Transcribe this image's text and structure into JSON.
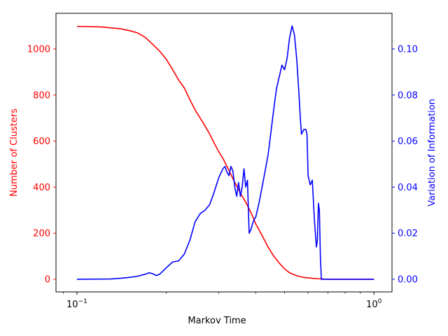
{
  "chart_data": {
    "type": "line",
    "xlabel": "Markov Time",
    "x_scale": "log",
    "xlim": [
      0.085,
      1.15
    ],
    "x_ticks": [
      {
        "value": 0.1,
        "base": "10",
        "exp": "−1"
      },
      {
        "value": 1.0,
        "base": "10",
        "exp": "0"
      }
    ],
    "y_left": {
      "label": "Number of Clusters",
      "color": "#ff0000",
      "lim": [
        -55,
        1155
      ],
      "ticks": [
        0,
        200,
        400,
        600,
        800,
        1000
      ],
      "tick_labels": [
        "0",
        "200",
        "400",
        "600",
        "800",
        "1000"
      ]
    },
    "y_right": {
      "label": "Variation of Information",
      "color": "#0000ff",
      "lim": [
        -0.0055,
        0.1155
      ],
      "ticks": [
        0.0,
        0.02,
        0.04,
        0.06,
        0.08,
        0.1
      ],
      "tick_labels": [
        "0.00",
        "0.02",
        "0.04",
        "0.06",
        "0.08",
        "0.10"
      ]
    },
    "series": [
      {
        "axis": "left",
        "color": "#ff0000",
        "x": [
          0.1,
          0.12,
          0.14,
          0.15,
          0.16,
          0.17,
          0.18,
          0.19,
          0.2,
          0.21,
          0.22,
          0.23,
          0.24,
          0.25,
          0.26,
          0.27,
          0.28,
          0.29,
          0.3,
          0.31,
          0.32,
          0.33,
          0.34,
          0.35,
          0.36,
          0.37,
          0.38,
          0.39,
          0.4,
          0.42,
          0.44,
          0.46,
          0.48,
          0.5,
          0.52,
          0.55,
          0.58,
          0.62,
          0.65,
          0.7,
          0.8,
          1.0
        ],
        "values": [
          1098,
          1096,
          1088,
          1080,
          1070,
          1050,
          1020,
          990,
          955,
          910,
          865,
          830,
          780,
          735,
          700,
          665,
          630,
          590,
          555,
          525,
          490,
          455,
          420,
          390,
          360,
          335,
          305,
          275,
          240,
          190,
          140,
          100,
          70,
          45,
          28,
          15,
          8,
          4,
          2,
          0,
          0,
          0
        ]
      },
      {
        "axis": "right",
        "color": "#0000ff",
        "x": [
          0.1,
          0.13,
          0.14,
          0.15,
          0.16,
          0.17,
          0.175,
          0.18,
          0.185,
          0.19,
          0.2,
          0.21,
          0.22,
          0.23,
          0.24,
          0.25,
          0.26,
          0.27,
          0.28,
          0.29,
          0.3,
          0.305,
          0.31,
          0.315,
          0.32,
          0.325,
          0.33,
          0.335,
          0.34,
          0.345,
          0.35,
          0.355,
          0.36,
          0.365,
          0.37,
          0.375,
          0.38,
          0.385,
          0.39,
          0.395,
          0.4,
          0.41,
          0.42,
          0.43,
          0.44,
          0.45,
          0.46,
          0.47,
          0.48,
          0.49,
          0.5,
          0.51,
          0.52,
          0.53,
          0.54,
          0.55,
          0.56,
          0.565,
          0.57,
          0.58,
          0.59,
          0.595,
          0.6,
          0.61,
          0.62,
          0.63,
          0.64,
          0.645,
          0.65,
          0.655,
          0.66,
          0.665,
          0.67,
          0.675,
          0.68,
          0.7,
          0.8,
          0.9,
          1.0
        ],
        "values": [
          0.0,
          0.0001,
          0.0004,
          0.0008,
          0.0013,
          0.0022,
          0.0028,
          0.0024,
          0.0016,
          0.0022,
          0.005,
          0.0075,
          0.008,
          0.011,
          0.017,
          0.025,
          0.0285,
          0.03,
          0.0325,
          0.038,
          0.044,
          0.046,
          0.048,
          0.049,
          0.0465,
          0.045,
          0.049,
          0.047,
          0.04,
          0.036,
          0.042,
          0.036,
          0.04,
          0.048,
          0.04,
          0.043,
          0.02,
          0.0215,
          0.024,
          0.026,
          0.027,
          0.033,
          0.04,
          0.047,
          0.054,
          0.064,
          0.074,
          0.083,
          0.088,
          0.093,
          0.091,
          0.096,
          0.105,
          0.11,
          0.106,
          0.095,
          0.079,
          0.07,
          0.063,
          0.065,
          0.065,
          0.063,
          0.045,
          0.041,
          0.043,
          0.026,
          0.014,
          0.017,
          0.033,
          0.03,
          0.01,
          0.0,
          0.0,
          0.0,
          0.0,
          0.0,
          0.0,
          0.0,
          0.0
        ]
      }
    ]
  }
}
